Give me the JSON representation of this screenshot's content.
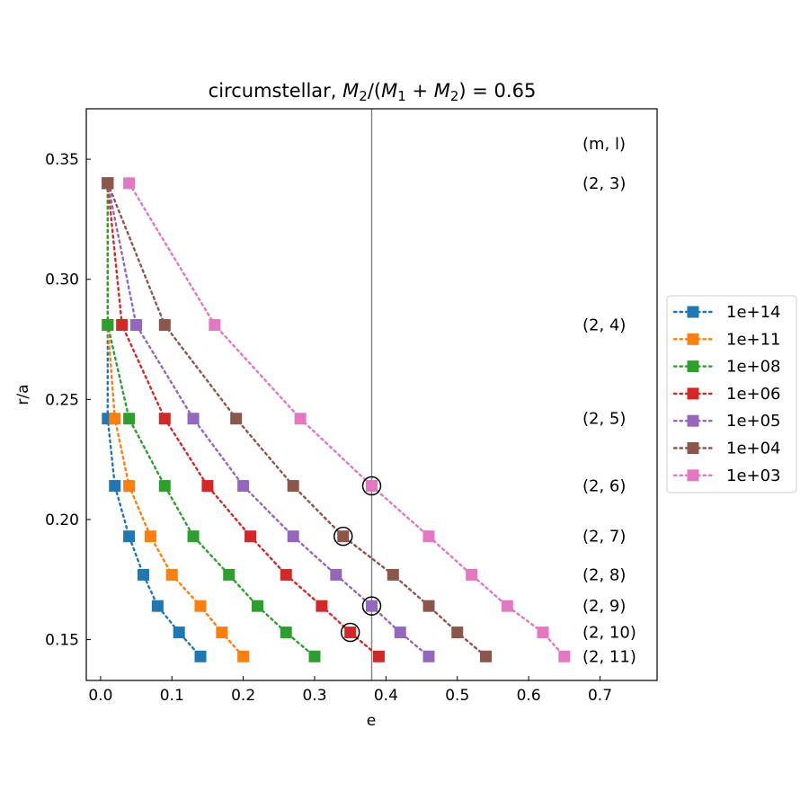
{
  "chart_data": {
    "type": "scatter",
    "title_prefix": "circumstellar, ",
    "title_math": [
      "M",
      "2",
      "/(",
      "M",
      "1",
      " + ",
      "M",
      "2",
      ")"
    ],
    "title_suffix": " = 0.65",
    "xlabel": "e",
    "ylabel": "r/a",
    "xlim": [
      -0.02,
      0.78
    ],
    "ylim": [
      0.133,
      0.371
    ],
    "xticks": [
      0.0,
      0.1,
      0.2,
      0.3,
      0.4,
      0.5,
      0.6,
      0.7
    ],
    "xtick_labels": [
      "0.0",
      "0.1",
      "0.2",
      "0.3",
      "0.4",
      "0.5",
      "0.6",
      "0.7"
    ],
    "yticks": [
      0.15,
      0.2,
      0.25,
      0.3,
      0.35
    ],
    "ytick_labels": [
      "0.15",
      "0.20",
      "0.25",
      "0.30",
      "0.35"
    ],
    "grid": false,
    "legend_position": "outside-right",
    "vline_x": 0.38,
    "vline_color": "#808080",
    "resonance_header": "(m, l)",
    "resonances": [
      {
        "label": "(2, 3)",
        "y": 0.34
      },
      {
        "label": "(2, 4)",
        "y": 0.281
      },
      {
        "label": "(2, 5)",
        "y": 0.242
      },
      {
        "label": "(2, 6)",
        "y": 0.214
      },
      {
        "label": "(2, 7)",
        "y": 0.193
      },
      {
        "label": "(2, 8)",
        "y": 0.177
      },
      {
        "label": "(2, 9)",
        "y": 0.164
      },
      {
        "label": "(2, 10)",
        "y": 0.153
      },
      {
        "label": "(2, 11)",
        "y": 0.143
      }
    ],
    "series": [
      {
        "name": "1e+14",
        "color": "#1f77b4",
        "points": [
          [
            0.01,
            0.34
          ],
          [
            0.01,
            0.281
          ],
          [
            0.01,
            0.242
          ],
          [
            0.02,
            0.214
          ],
          [
            0.04,
            0.193
          ],
          [
            0.06,
            0.177
          ],
          [
            0.08,
            0.164
          ],
          [
            0.11,
            0.153
          ],
          [
            0.14,
            0.143
          ]
        ]
      },
      {
        "name": "1e+11",
        "color": "#ff7f0e",
        "points": [
          [
            0.01,
            0.34
          ],
          [
            0.01,
            0.281
          ],
          [
            0.02,
            0.242
          ],
          [
            0.04,
            0.214
          ],
          [
            0.07,
            0.193
          ],
          [
            0.1,
            0.177
          ],
          [
            0.14,
            0.164
          ],
          [
            0.17,
            0.153
          ],
          [
            0.2,
            0.143
          ]
        ]
      },
      {
        "name": "1e+08",
        "color": "#2ca02c",
        "points": [
          [
            0.01,
            0.34
          ],
          [
            0.01,
            0.281
          ],
          [
            0.04,
            0.242
          ],
          [
            0.09,
            0.214
          ],
          [
            0.13,
            0.193
          ],
          [
            0.18,
            0.177
          ],
          [
            0.22,
            0.164
          ],
          [
            0.26,
            0.153
          ],
          [
            0.3,
            0.143
          ]
        ]
      },
      {
        "name": "1e+06",
        "color": "#d62728",
        "points": [
          [
            0.01,
            0.34
          ],
          [
            0.03,
            0.281
          ],
          [
            0.09,
            0.242
          ],
          [
            0.15,
            0.214
          ],
          [
            0.21,
            0.193
          ],
          [
            0.26,
            0.177
          ],
          [
            0.31,
            0.164
          ],
          [
            0.35,
            0.153
          ],
          [
            0.39,
            0.143
          ]
        ]
      },
      {
        "name": "1e+05",
        "color": "#9467bd",
        "points": [
          [
            0.01,
            0.34
          ],
          [
            0.05,
            0.281
          ],
          [
            0.13,
            0.242
          ],
          [
            0.2,
            0.214
          ],
          [
            0.27,
            0.193
          ],
          [
            0.33,
            0.177
          ],
          [
            0.38,
            0.164
          ],
          [
            0.42,
            0.153
          ],
          [
            0.46,
            0.143
          ]
        ]
      },
      {
        "name": "1e+04",
        "color": "#8c564b",
        "points": [
          [
            0.01,
            0.34
          ],
          [
            0.09,
            0.281
          ],
          [
            0.19,
            0.242
          ],
          [
            0.27,
            0.214
          ],
          [
            0.34,
            0.193
          ],
          [
            0.41,
            0.177
          ],
          [
            0.46,
            0.164
          ],
          [
            0.5,
            0.153
          ],
          [
            0.54,
            0.143
          ]
        ]
      },
      {
        "name": "1e+03",
        "color": "#e377c2",
        "points": [
          [
            0.04,
            0.34
          ],
          [
            0.16,
            0.281
          ],
          [
            0.28,
            0.242
          ],
          [
            0.38,
            0.214
          ],
          [
            0.46,
            0.193
          ],
          [
            0.52,
            0.177
          ],
          [
            0.57,
            0.164
          ],
          [
            0.62,
            0.153
          ],
          [
            0.65,
            0.143
          ]
        ]
      }
    ],
    "circled_points": [
      [
        0.38,
        0.214
      ],
      [
        0.34,
        0.193
      ],
      [
        0.38,
        0.164
      ],
      [
        0.35,
        0.153
      ]
    ]
  }
}
